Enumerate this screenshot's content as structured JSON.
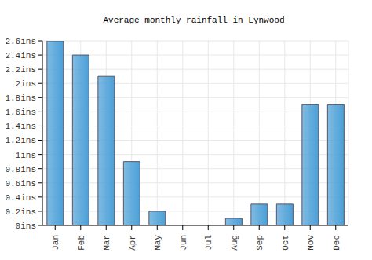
{
  "chart_data": {
    "type": "bar",
    "title": "Average monthly rainfall in Lynwood",
    "categories": [
      "Jan",
      "Feb",
      "Mar",
      "Apr",
      "May",
      "Jun",
      "Jul",
      "Aug",
      "Sep",
      "Oct",
      "Nov",
      "Dec"
    ],
    "values": [
      2.6,
      2.4,
      2.1,
      0.9,
      0.2,
      0,
      0,
      0.1,
      0.3,
      0.3,
      1.7,
      1.7
    ],
    "color": "#4a9fd8",
    "ylim": [
      0,
      2.6
    ],
    "yticks": [
      {
        "value": 0,
        "label": "0ins"
      },
      {
        "value": 0.2,
        "label": "0.2ins"
      },
      {
        "value": 0.4,
        "label": "0.4ins"
      },
      {
        "value": 0.6,
        "label": "0.6ins"
      },
      {
        "value": 0.8,
        "label": "0.8ins"
      },
      {
        "value": 1,
        "label": "1ins"
      },
      {
        "value": 1.2,
        "label": "1.2ins"
      },
      {
        "value": 1.4,
        "label": "1.4ins"
      },
      {
        "value": 1.6,
        "label": "1.6ins"
      },
      {
        "value": 1.8,
        "label": "1.8ins"
      },
      {
        "value": 2,
        "label": "2ins"
      },
      {
        "value": 2.2,
        "label": "2.2ins"
      },
      {
        "value": 2.4,
        "label": "2.4ins"
      },
      {
        "value": 2.6,
        "label": "2.6ins"
      }
    ],
    "grid": true
  }
}
